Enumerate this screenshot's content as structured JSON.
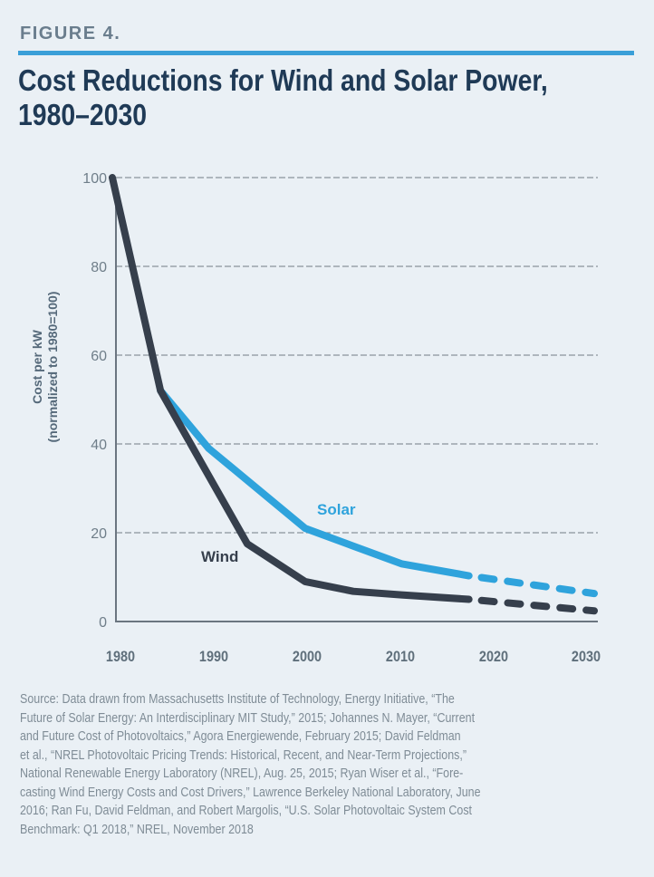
{
  "figure_label": "FIGURE 4.",
  "title_line1": "Cost Reductions for Wind and Solar Power,",
  "title_line2": "1980–2030",
  "source_lines": [
    "Source: Data drawn from Massachusetts Institute of Technology, Energy Initiative, “The",
    "Future of Solar Energy: An Interdisciplinary MIT Study,” 2015; Johannes N. Mayer, “Current",
    "and Future Cost of Photovoltaics,” Agora Energiewende, February 2015; David Feldman",
    "et al., “NREL Photovoltaic Pricing Trends: Historical, Recent, and Near-Term Projections,”",
    "National Renewable Energy Laboratory (NREL), Aug. 25, 2015; Ryan Wiser et al., “Fore-",
    "casting Wind Energy Costs and Cost Drivers,” Lawrence Berkeley National Laboratory, June",
    "2016; Ran Fu, David Feldman, and Robert Margolis, “U.S. Solar Photovoltaic System Cost",
    "Benchmark: Q1 2018,” NREL, November 2018"
  ],
  "colors": {
    "wind": "#363f4c",
    "solar": "#2fa3dc",
    "accent_rule": "#3a9fd8",
    "title": "#1f3a56"
  },
  "chart_data": {
    "type": "line",
    "title": "Cost Reductions for Wind and Solar Power, 1980–2030",
    "xlabel": "",
    "ylabel_line1": "Cost per kW",
    "ylabel_line2": "(normalized to 1980=100)",
    "xlim": [
      1980,
      2030
    ],
    "ylim": [
      0,
      100
    ],
    "xticks": [
      1980,
      1990,
      2000,
      2010,
      2020,
      2030
    ],
    "yticks": [
      0,
      20,
      40,
      60,
      80,
      100
    ],
    "grid": "horizontal-dashed",
    "series": [
      {
        "name": "Wind",
        "label": "Wind",
        "historical": [
          [
            1980,
            100
          ],
          [
            1985,
            52
          ],
          [
            1994,
            17.5
          ],
          [
            2000,
            9
          ],
          [
            2005,
            6.8
          ],
          [
            2010,
            6
          ],
          [
            2017,
            5
          ]
        ],
        "projected": [
          [
            2017,
            5
          ],
          [
            2030,
            2.4
          ]
        ]
      },
      {
        "name": "Solar",
        "label": "Solar",
        "historical": [
          [
            1985,
            52
          ],
          [
            1990,
            39
          ],
          [
            2000,
            21
          ],
          [
            2005,
            17
          ],
          [
            2010,
            13
          ],
          [
            2017,
            10.3
          ]
        ],
        "projected": [
          [
            2017,
            10.3
          ],
          [
            2030,
            6.3
          ]
        ]
      }
    ]
  }
}
